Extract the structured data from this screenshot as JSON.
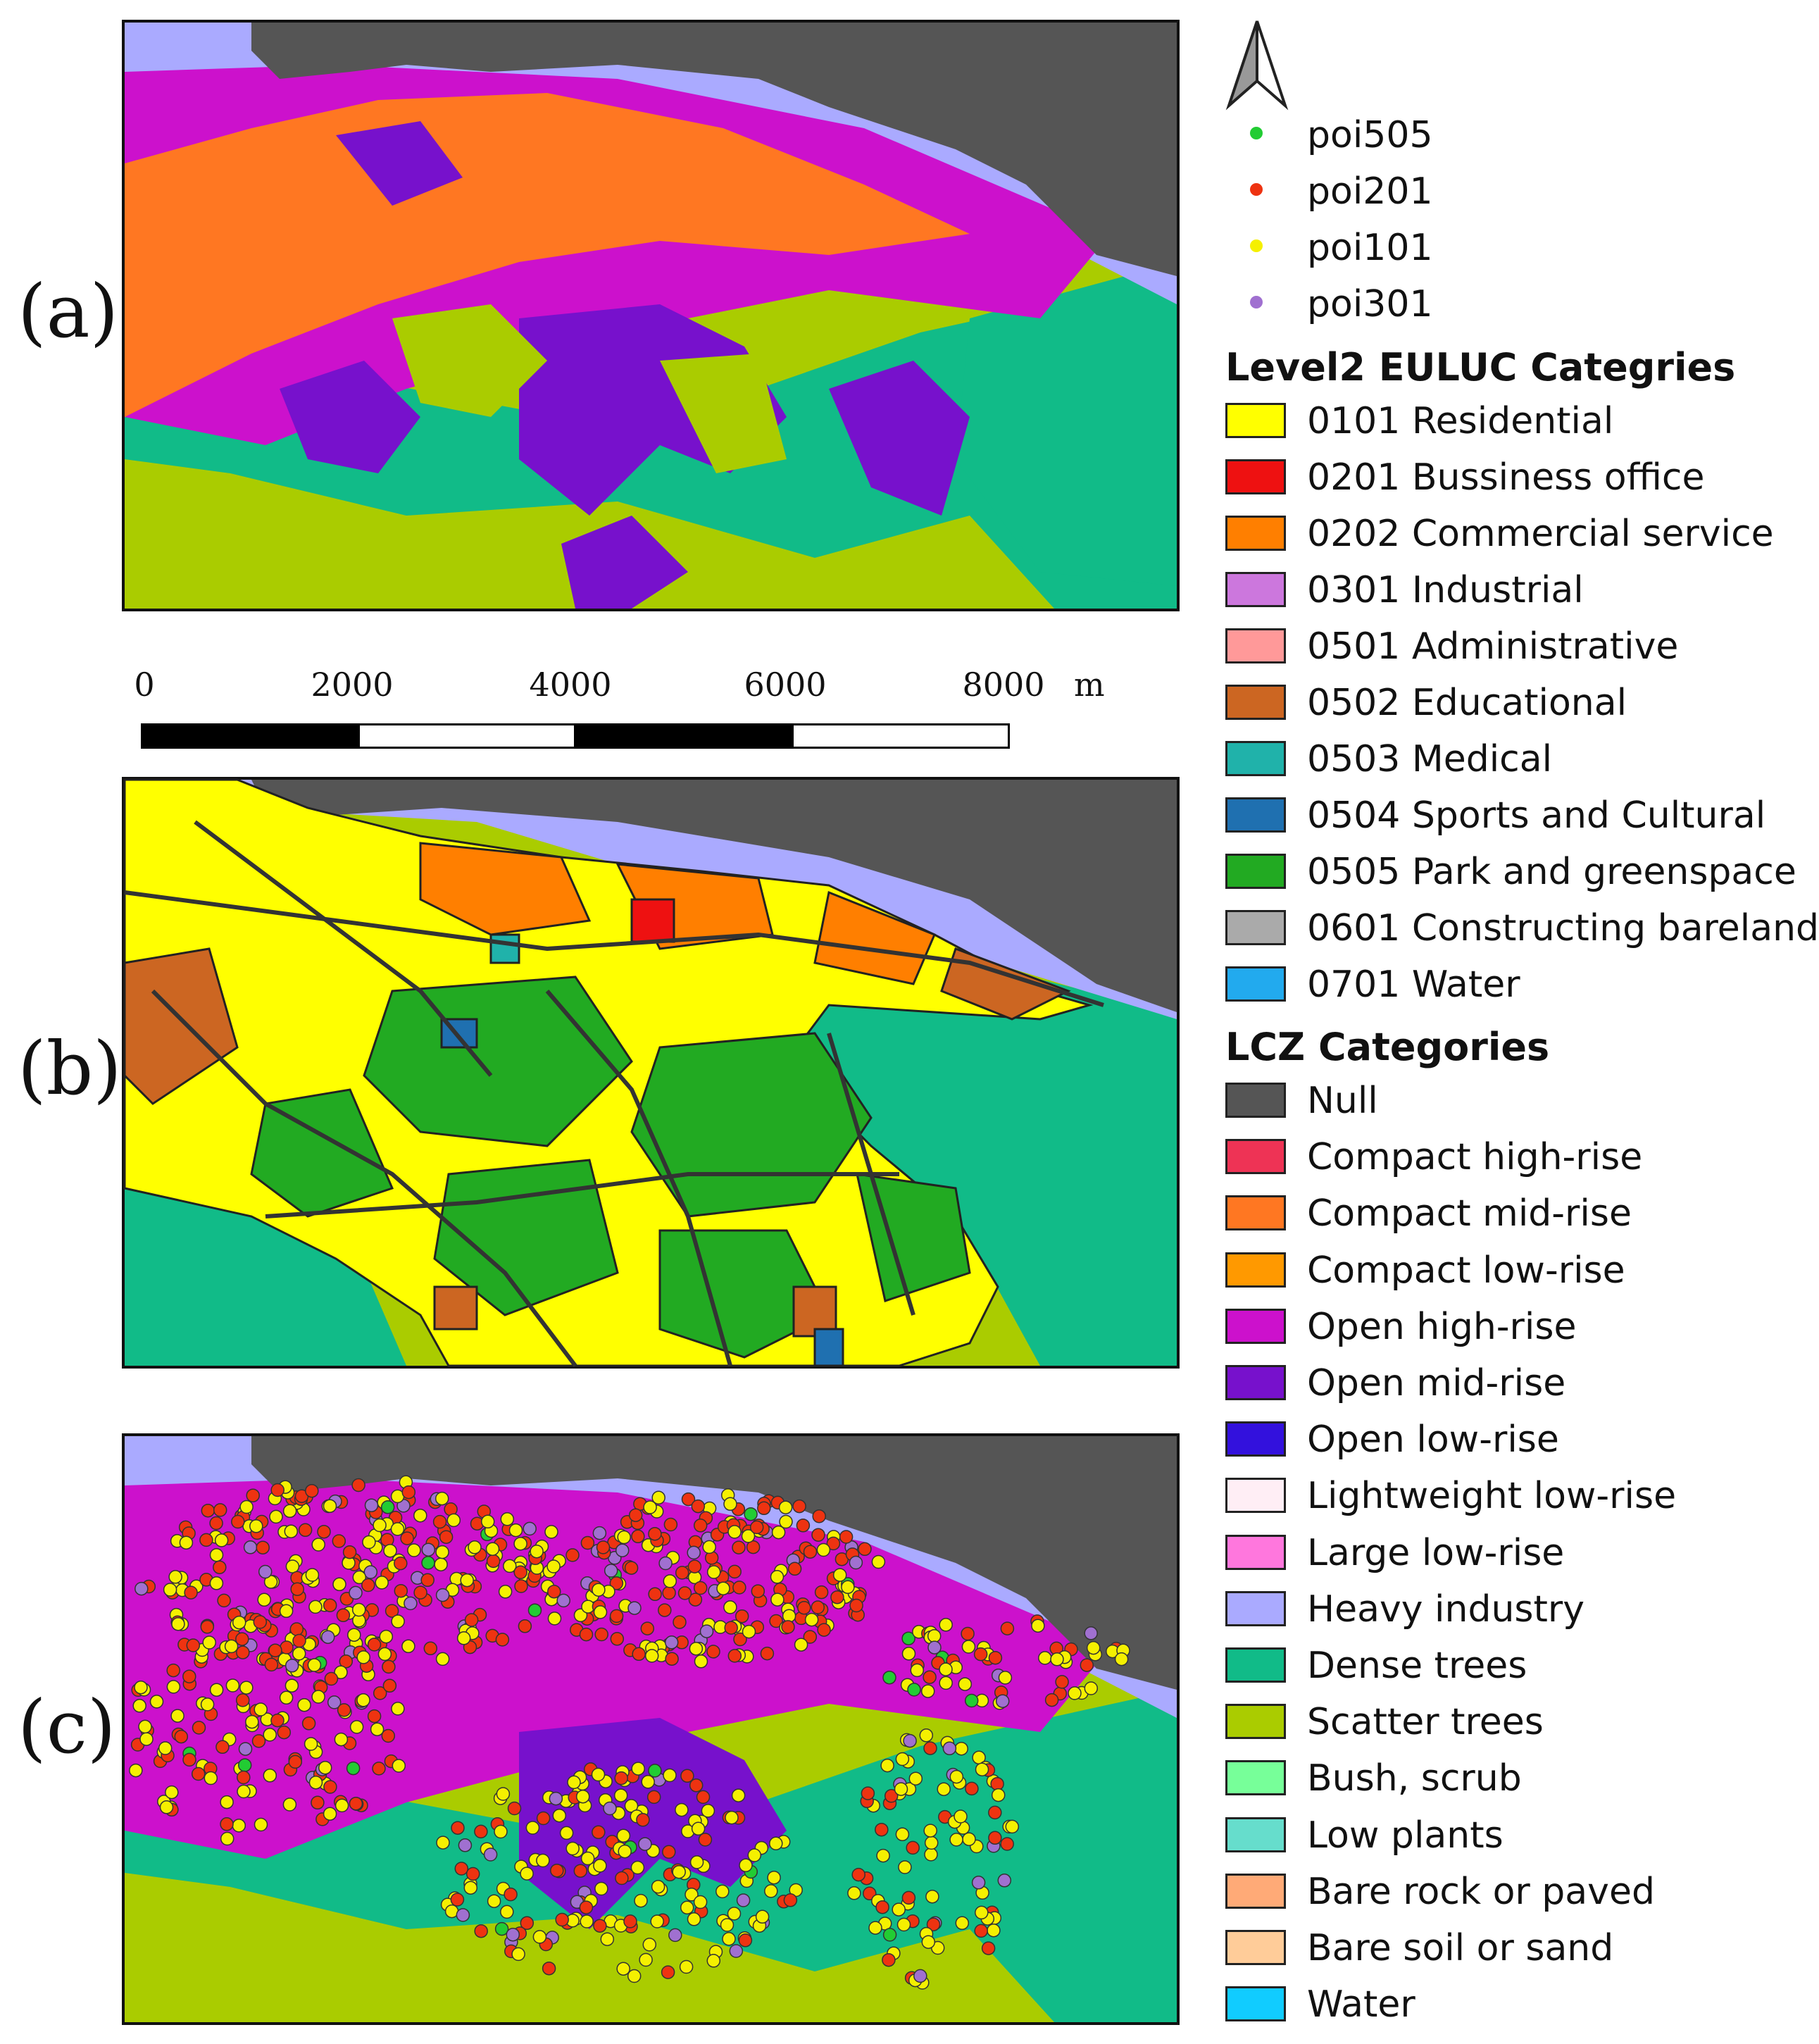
{
  "panels": [
    {
      "label": "(a)"
    },
    {
      "label": "(b)"
    },
    {
      "label": "(c)"
    }
  ],
  "scale_bar": {
    "ticks": [
      "0",
      "2000",
      "4000",
      "6000",
      "8000"
    ],
    "unit": "m"
  },
  "north_arrow": {
    "icon": "north-arrow-icon"
  },
  "poi_legend": [
    {
      "label": "poi505",
      "color": "#22cc33"
    },
    {
      "label": "poi201",
      "color": "#ee3311"
    },
    {
      "label": "poi101",
      "color": "#f5f000"
    },
    {
      "label": "poi301",
      "color": "#a070d0"
    }
  ],
  "euluc_legend": {
    "title": "Level2 EULUC Categries",
    "items": [
      {
        "label": "0101 Residential",
        "color": "#ffff00"
      },
      {
        "label": "0201 Bussiness office",
        "color": "#ee1111"
      },
      {
        "label": "0202 Commercial service",
        "color": "#ff7f00"
      },
      {
        "label": "0301 Industrial",
        "color": "#cc77dd"
      },
      {
        "label": "0501 Administrative",
        "color": "#ff9999"
      },
      {
        "label": "0502 Educational",
        "color": "#cc6622"
      },
      {
        "label": "0503 Medical",
        "color": "#20b2aa"
      },
      {
        "label": "0504 Sports and Cultural",
        "color": "#1f70b0"
      },
      {
        "label": "0505 Park and greenspace",
        "color": "#22aa22"
      },
      {
        "label": "0601 Constructing bareland",
        "color": "#aaaaaa"
      },
      {
        "label": "0701 Water",
        "color": "#22aaee"
      }
    ]
  },
  "lcz_legend": {
    "title": "LCZ Categories",
    "items": [
      {
        "label": "Null",
        "color": "#555555"
      },
      {
        "label": "Compact high-rise",
        "color": "#ee3355"
      },
      {
        "label": "Compact mid-rise",
        "color": "#ff7722"
      },
      {
        "label": "Compact low-rise",
        "color": "#ff9900"
      },
      {
        "label": "Open high-rise",
        "color": "#cc11cc"
      },
      {
        "label": "Open mid-rise",
        "color": "#7711cc"
      },
      {
        "label": "Open low-rise",
        "color": "#3311dd"
      },
      {
        "label": "Lightweight low-rise",
        "color": "#ffeef5"
      },
      {
        "label": "Large low-rise",
        "color": "#ff77dd"
      },
      {
        "label": "Heavy industry",
        "color": "#aaaaff"
      },
      {
        "label": "Dense trees",
        "color": "#11bb88"
      },
      {
        "label": "Scatter trees",
        "color": "#aacc00"
      },
      {
        "label": "Bush, scrub",
        "color": "#77ff99"
      },
      {
        "label": "Low plants",
        "color": "#66ddcc"
      },
      {
        "label": "Bare rock or paved",
        "color": "#ffaa77"
      },
      {
        "label": "Bare soil or sand",
        "color": "#ffcc99"
      },
      {
        "label": "Water",
        "color": "#11ccff"
      }
    ]
  }
}
